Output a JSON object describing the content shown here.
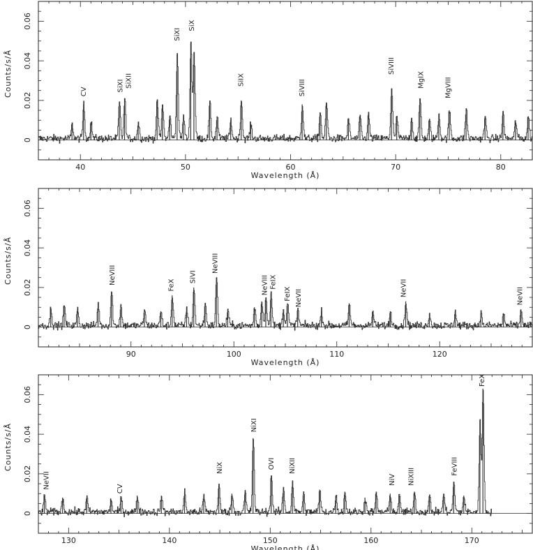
{
  "chart_data": [
    {
      "type": "line",
      "xlabel": "Wavelength (Å)",
      "ylabel": "Counts/s/Å",
      "xlim": [
        36,
        83
      ],
      "ylim": [
        -0.01,
        0.07
      ],
      "xticks": [
        40,
        50,
        60,
        70,
        80
      ],
      "yticks": [
        0,
        0.02,
        0.04,
        0.06
      ],
      "ytick_labels": [
        "0",
        "0.02",
        "0.04",
        "0.06"
      ],
      "zero_line": true,
      "peaks": [
        {
          "x": 39.2,
          "y": 0.008
        },
        {
          "x": 40.3,
          "y": 0.018
        },
        {
          "x": 41.0,
          "y": 0.009
        },
        {
          "x": 43.7,
          "y": 0.019
        },
        {
          "x": 44.2,
          "y": 0.021
        },
        {
          "x": 45.5,
          "y": 0.009
        },
        {
          "x": 47.3,
          "y": 0.02
        },
        {
          "x": 47.8,
          "y": 0.018
        },
        {
          "x": 48.5,
          "y": 0.012
        },
        {
          "x": 49.2,
          "y": 0.043
        },
        {
          "x": 49.8,
          "y": 0.012
        },
        {
          "x": 50.5,
          "y": 0.049
        },
        {
          "x": 50.8,
          "y": 0.044
        },
        {
          "x": 52.3,
          "y": 0.019
        },
        {
          "x": 53.0,
          "y": 0.012
        },
        {
          "x": 54.3,
          "y": 0.01
        },
        {
          "x": 55.3,
          "y": 0.02
        },
        {
          "x": 56.2,
          "y": 0.008
        },
        {
          "x": 61.1,
          "y": 0.018
        },
        {
          "x": 62.8,
          "y": 0.014
        },
        {
          "x": 63.4,
          "y": 0.019
        },
        {
          "x": 65.5,
          "y": 0.011
        },
        {
          "x": 66.6,
          "y": 0.012
        },
        {
          "x": 67.4,
          "y": 0.013
        },
        {
          "x": 69.6,
          "y": 0.026
        },
        {
          "x": 70.1,
          "y": 0.012
        },
        {
          "x": 71.5,
          "y": 0.011
        },
        {
          "x": 72.3,
          "y": 0.021
        },
        {
          "x": 73.2,
          "y": 0.01
        },
        {
          "x": 74.1,
          "y": 0.013
        },
        {
          "x": 75.1,
          "y": 0.015
        },
        {
          "x": 76.7,
          "y": 0.016
        },
        {
          "x": 78.5,
          "y": 0.012
        },
        {
          "x": 80.2,
          "y": 0.014
        },
        {
          "x": 81.4,
          "y": 0.01
        },
        {
          "x": 82.6,
          "y": 0.012
        }
      ],
      "annotations": [
        {
          "text": "CV",
          "x": 40.3,
          "y": 0.022
        },
        {
          "text": "SiXI",
          "x": 43.8,
          "y": 0.024
        },
        {
          "text": "SiXII",
          "x": 44.6,
          "y": 0.026
        },
        {
          "text": "SiXI",
          "x": 49.2,
          "y": 0.05
        },
        {
          "text": "SiX",
          "x": 50.6,
          "y": 0.055
        },
        {
          "text": "SiIX",
          "x": 55.3,
          "y": 0.027
        },
        {
          "text": "SiVIII",
          "x": 61.1,
          "y": 0.022
        },
        {
          "text": "SiVIII",
          "x": 69.6,
          "y": 0.033
        },
        {
          "text": "MgIX",
          "x": 72.4,
          "y": 0.026
        },
        {
          "text": "MgVIII",
          "x": 75.0,
          "y": 0.021
        }
      ]
    },
    {
      "type": "line",
      "xlabel": "Wavelength (Å)",
      "ylabel": "Counts/s/Å",
      "xlim": [
        81,
        129
      ],
      "ylim": [
        -0.01,
        0.07
      ],
      "xticks": [
        90,
        100,
        110,
        120
      ],
      "yticks": [
        0,
        0.02,
        0.04,
        0.06
      ],
      "ytick_labels": [
        "0",
        "0.02",
        "0.04",
        "0.06"
      ],
      "zero_line": true,
      "peaks": [
        {
          "x": 82.2,
          "y": 0.01
        },
        {
          "x": 83.5,
          "y": 0.011
        },
        {
          "x": 84.8,
          "y": 0.009
        },
        {
          "x": 86.8,
          "y": 0.012
        },
        {
          "x": 88.1,
          "y": 0.018
        },
        {
          "x": 89.0,
          "y": 0.011
        },
        {
          "x": 91.3,
          "y": 0.009
        },
        {
          "x": 92.9,
          "y": 0.008
        },
        {
          "x": 94.0,
          "y": 0.016
        },
        {
          "x": 95.4,
          "y": 0.01
        },
        {
          "x": 96.1,
          "y": 0.02
        },
        {
          "x": 97.2,
          "y": 0.012
        },
        {
          "x": 98.3,
          "y": 0.025
        },
        {
          "x": 99.4,
          "y": 0.009
        },
        {
          "x": 102.0,
          "y": 0.01
        },
        {
          "x": 102.7,
          "y": 0.013
        },
        {
          "x": 103.1,
          "y": 0.015
        },
        {
          "x": 103.6,
          "y": 0.017
        },
        {
          "x": 104.8,
          "y": 0.009
        },
        {
          "x": 105.2,
          "y": 0.012
        },
        {
          "x": 106.2,
          "y": 0.009
        },
        {
          "x": 108.5,
          "y": 0.008
        },
        {
          "x": 111.2,
          "y": 0.012
        },
        {
          "x": 113.5,
          "y": 0.008
        },
        {
          "x": 115.2,
          "y": 0.008
        },
        {
          "x": 116.7,
          "y": 0.013
        },
        {
          "x": 119.0,
          "y": 0.007
        },
        {
          "x": 121.5,
          "y": 0.008
        },
        {
          "x": 124.0,
          "y": 0.007
        },
        {
          "x": 126.2,
          "y": 0.007
        },
        {
          "x": 127.9,
          "y": 0.009
        }
      ],
      "annotations": [
        {
          "text": "NeVIII",
          "x": 88.2,
          "y": 0.021
        },
        {
          "text": "FeX",
          "x": 93.9,
          "y": 0.018
        },
        {
          "text": "SiVI",
          "x": 96.0,
          "y": 0.022
        },
        {
          "text": "NeVIII",
          "x": 98.2,
          "y": 0.027
        },
        {
          "text": "NeVIII",
          "x": 103.0,
          "y": 0.016
        },
        {
          "text": "FeIX",
          "x": 103.8,
          "y": 0.019
        },
        {
          "text": "FeIX",
          "x": 105.2,
          "y": 0.013
        },
        {
          "text": "NeVII",
          "x": 106.3,
          "y": 0.01
        },
        {
          "text": "NeVII",
          "x": 116.5,
          "y": 0.015
        },
        {
          "text": "NeVII",
          "x": 127.8,
          "y": 0.011
        }
      ]
    },
    {
      "type": "line",
      "xlabel": "Wavelength (Å)",
      "ylabel": "Counts/s/Å",
      "xlim": [
        127,
        176
      ],
      "ylim": [
        -0.01,
        0.07
      ],
      "xticks": [
        130,
        140,
        150,
        160,
        170
      ],
      "yticks": [
        0,
        0.02,
        0.04,
        0.06
      ],
      "ytick_labels": [
        "0",
        "0.02",
        "0.04",
        "0.06"
      ],
      "zero_line": true,
      "data_xmax": 172,
      "peaks": [
        {
          "x": 127.6,
          "y": 0.009
        },
        {
          "x": 129.4,
          "y": 0.008
        },
        {
          "x": 131.8,
          "y": 0.008
        },
        {
          "x": 134.2,
          "y": 0.007
        },
        {
          "x": 135.2,
          "y": 0.008
        },
        {
          "x": 136.8,
          "y": 0.009
        },
        {
          "x": 139.2,
          "y": 0.009
        },
        {
          "x": 141.5,
          "y": 0.011
        },
        {
          "x": 143.4,
          "y": 0.009
        },
        {
          "x": 144.9,
          "y": 0.014
        },
        {
          "x": 146.2,
          "y": 0.01
        },
        {
          "x": 147.5,
          "y": 0.011
        },
        {
          "x": 148.3,
          "y": 0.038
        },
        {
          "x": 150.1,
          "y": 0.019
        },
        {
          "x": 151.3,
          "y": 0.013
        },
        {
          "x": 152.2,
          "y": 0.016
        },
        {
          "x": 153.3,
          "y": 0.01
        },
        {
          "x": 154.9,
          "y": 0.012
        },
        {
          "x": 156.5,
          "y": 0.009
        },
        {
          "x": 157.4,
          "y": 0.011
        },
        {
          "x": 159.4,
          "y": 0.008
        },
        {
          "x": 160.5,
          "y": 0.01
        },
        {
          "x": 161.9,
          "y": 0.01
        },
        {
          "x": 162.8,
          "y": 0.009
        },
        {
          "x": 164.3,
          "y": 0.011
        },
        {
          "x": 165.8,
          "y": 0.009
        },
        {
          "x": 167.2,
          "y": 0.01
        },
        {
          "x": 168.2,
          "y": 0.016
        },
        {
          "x": 169.2,
          "y": 0.009
        },
        {
          "x": 170.8,
          "y": 0.047
        },
        {
          "x": 171.1,
          "y": 0.063
        }
      ],
      "annotations": [
        {
          "text": "NeVII",
          "x": 127.8,
          "y": 0.012
        },
        {
          "text": "CV",
          "x": 135.1,
          "y": 0.01
        },
        {
          "text": "NiX",
          "x": 145.0,
          "y": 0.02
        },
        {
          "text": "NiXI",
          "x": 148.4,
          "y": 0.041
        },
        {
          "text": "OVI",
          "x": 150.1,
          "y": 0.022
        },
        {
          "text": "NiXII",
          "x": 152.2,
          "y": 0.02
        },
        {
          "text": "NiV",
          "x": 162.1,
          "y": 0.014
        },
        {
          "text": "NiXIII",
          "x": 164.0,
          "y": 0.014
        },
        {
          "text": "FeVIII",
          "x": 168.3,
          "y": 0.019
        },
        {
          "text": "FeX",
          "x": 171.0,
          "y": 0.064
        }
      ]
    }
  ]
}
